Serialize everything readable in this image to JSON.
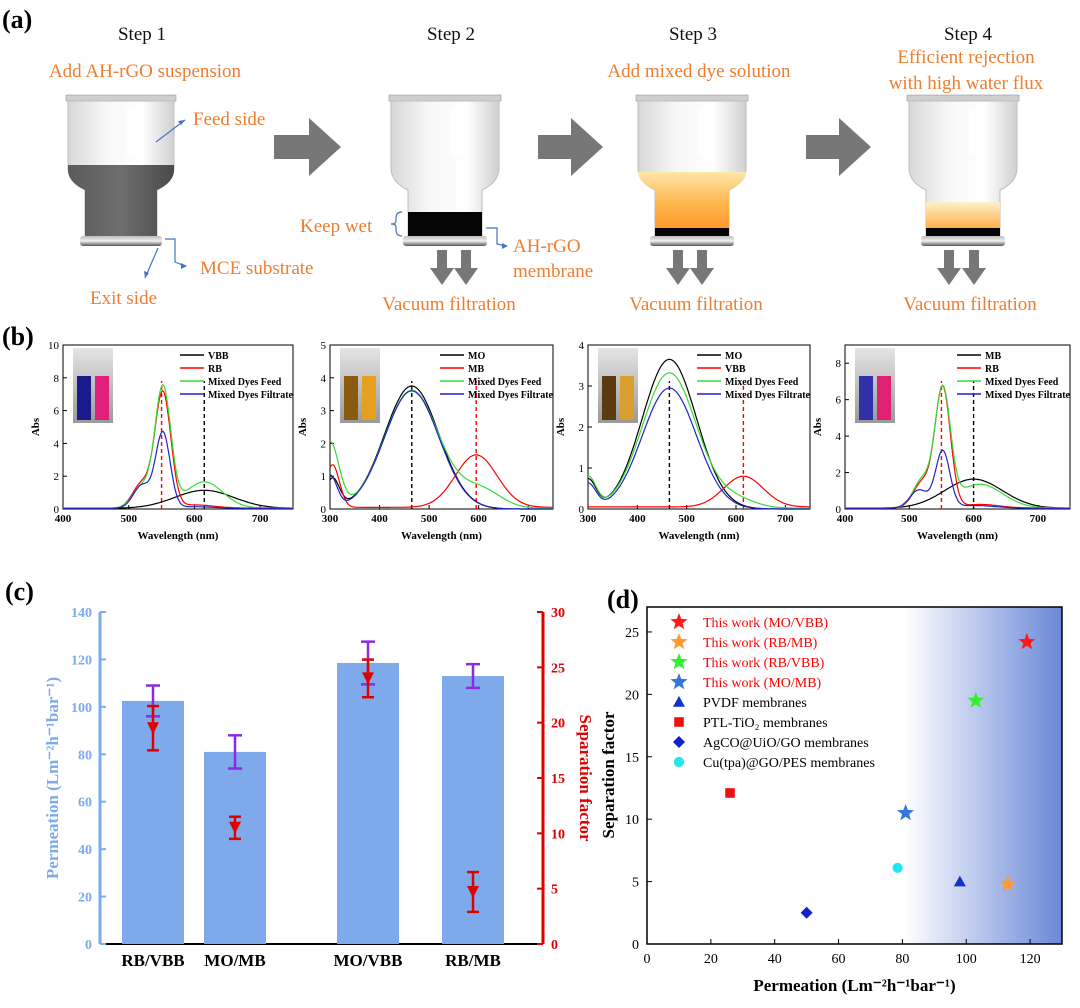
{
  "panel_labels": [
    "(a)",
    "(b)",
    "(c)",
    "(d)"
  ],
  "schematic": {
    "steps": [
      {
        "title": "Step 1",
        "caption_lines": [
          "Add AH-rGO suspension"
        ]
      },
      {
        "title": "Step 2",
        "caption_lines": []
      },
      {
        "title": "Step 3",
        "caption_lines": [
          "Add mixed dye solution"
        ]
      },
      {
        "title": "Step 4",
        "caption_lines": [
          "Efficient rejection",
          "with high water flux"
        ]
      }
    ],
    "callouts": {
      "feed_side": "Feed side",
      "exit_side": "Exit side",
      "mce_substrate": "MCE substrate",
      "keep_wet": "Keep wet",
      "membrane_line1": "AH-rGO",
      "membrane_line2": "membrane"
    },
    "vacuum_label": "Vacuum filtration"
  },
  "colors": {
    "orange": "#ED7D31",
    "bar": "#7EAAEB",
    "left_axis": "#7EAAEB",
    "right_axis": "#E00000",
    "errbar_purple": "#8A2BE2",
    "black": "#000000",
    "red": "#FF0000",
    "green": "#33DD33",
    "blue": "#2222CC"
  },
  "chart_data": [
    {
      "type": "line",
      "panel": "b1",
      "xlabel": "Wavelength (nm)",
      "ylabel": "Abs",
      "xlim": [
        400,
        750
      ],
      "ylim": [
        0,
        10
      ],
      "xticks": [
        400,
        500,
        600,
        700
      ],
      "yticks": [
        0,
        2,
        4,
        6,
        8,
        10
      ],
      "legend_position": "top-right",
      "dashed_markers": [
        {
          "x": 550,
          "color": "#FF0000"
        },
        {
          "x": 615,
          "color": "#000000"
        }
      ],
      "series": [
        {
          "name": "VBB",
          "color": "#000000",
          "peaks": [
            {
              "c": 615,
              "h": 1.1,
              "w": 45
            }
          ],
          "base": 0.04
        },
        {
          "name": "RB",
          "color": "#FF0000",
          "peaks": [
            {
              "c": 552,
              "h": 7.0,
              "w": 12
            },
            {
              "c": 520,
              "h": 1.5,
              "w": 14
            },
            {
              "c": 600,
              "h": 0.2,
              "w": 30
            }
          ],
          "base": 0.05
        },
        {
          "name": "Mixed Dyes Feed",
          "color": "#33DD33",
          "peaks": [
            {
              "c": 552,
              "h": 7.3,
              "w": 12
            },
            {
              "c": 520,
              "h": 1.3,
              "w": 14
            },
            {
              "c": 615,
              "h": 1.6,
              "w": 28
            }
          ],
          "base": 0.06
        },
        {
          "name": "Mixed Dyes Filtrate",
          "color": "#2222CC",
          "peaks": [
            {
              "c": 552,
              "h": 4.6,
              "w": 11
            },
            {
              "c": 520,
              "h": 1.4,
              "w": 13
            },
            {
              "c": 600,
              "h": 0.1,
              "w": 30
            }
          ],
          "base": 0.04
        }
      ]
    },
    {
      "type": "line",
      "panel": "b2",
      "xlabel": "Wavelength (nm)",
      "ylabel": "Abs",
      "xlim": [
        300,
        750
      ],
      "ylim": [
        0,
        5
      ],
      "xticks": [
        300,
        400,
        500,
        600,
        700
      ],
      "yticks": [
        0,
        1,
        2,
        3,
        4,
        5
      ],
      "legend_position": "top-right",
      "dashed_markers": [
        {
          "x": 465,
          "color": "#000000"
        },
        {
          "x": 595,
          "color": "#FF0000"
        }
      ],
      "series": [
        {
          "name": "MO",
          "color": "#000000",
          "peaks": [
            {
              "c": 465,
              "h": 3.75,
              "w": 55
            },
            {
              "c": 305,
              "h": 0.9,
              "w": 14
            }
          ],
          "base": 0.0
        },
        {
          "name": "MB",
          "color": "#FF0000",
          "peaks": [
            {
              "c": 595,
              "h": 1.6,
              "w": 42
            },
            {
              "c": 305,
              "h": 1.3,
              "w": 14
            }
          ],
          "base": 0.05
        },
        {
          "name": "Mixed Dyes Feed",
          "color": "#33DD33",
          "peaks": [
            {
              "c": 465,
              "h": 3.6,
              "w": 55
            },
            {
              "c": 300,
              "h": 2.0,
              "w": 18
            },
            {
              "c": 605,
              "h": 0.55,
              "w": 40
            }
          ],
          "base": 0.02
        },
        {
          "name": "Mixed Dyes Filtrate",
          "color": "#2222CC",
          "peaks": [
            {
              "c": 465,
              "h": 3.6,
              "w": 55
            },
            {
              "c": 300,
              "h": 1.0,
              "w": 14
            }
          ],
          "base": 0.0
        }
      ]
    },
    {
      "type": "line",
      "panel": "b3",
      "xlabel": "Wavelength (nm)",
      "ylabel": "Abs",
      "xlim": [
        300,
        750
      ],
      "ylim": [
        0,
        4
      ],
      "xticks": [
        300,
        400,
        500,
        600,
        700
      ],
      "yticks": [
        0,
        1,
        2,
        3,
        4
      ],
      "legend_position": "top-right",
      "dashed_markers": [
        {
          "x": 465,
          "color": "#000000"
        },
        {
          "x": 615,
          "color": "#FF0000"
        }
      ],
      "series": [
        {
          "name": "MO",
          "color": "#000000",
          "peaks": [
            {
              "c": 465,
              "h": 3.65,
              "w": 55
            },
            {
              "c": 300,
              "h": 0.7,
              "w": 16
            }
          ],
          "base": 0.0
        },
        {
          "name": "VBB",
          "color": "#FF0000",
          "peaks": [
            {
              "c": 615,
              "h": 0.75,
              "w": 40
            }
          ],
          "base": 0.05
        },
        {
          "name": "Mixed Dyes Feed",
          "color": "#33DD33",
          "peaks": [
            {
              "c": 465,
              "h": 3.3,
              "w": 55
            },
            {
              "c": 300,
              "h": 0.75,
              "w": 16
            },
            {
              "c": 600,
              "h": 0.2,
              "w": 40
            }
          ],
          "base": 0.02
        },
        {
          "name": "Mixed Dyes Filtrate",
          "color": "#2222CC",
          "peaks": [
            {
              "c": 465,
              "h": 2.95,
              "w": 55
            },
            {
              "c": 300,
              "h": 0.6,
              "w": 16
            }
          ],
          "base": 0.0
        }
      ]
    },
    {
      "type": "line",
      "panel": "b4",
      "xlabel": "Wavelength (nm)",
      "ylabel": "Abs",
      "xlim": [
        400,
        750
      ],
      "ylim": [
        0,
        9
      ],
      "xticks": [
        400,
        500,
        600,
        700
      ],
      "yticks": [
        0,
        2,
        4,
        6,
        8
      ],
      "legend_position": "top-right",
      "dashed_markers": [
        {
          "x": 550,
          "color": "#FF0000"
        },
        {
          "x": 600,
          "color": "#000000"
        }
      ],
      "series": [
        {
          "name": "MB",
          "color": "#000000",
          "peaks": [
            {
              "c": 600,
              "h": 1.6,
              "w": 45
            }
          ],
          "base": 0.04
        },
        {
          "name": "RB",
          "color": "#FF0000",
          "peaks": [
            {
              "c": 552,
              "h": 6.6,
              "w": 12
            },
            {
              "c": 520,
              "h": 1.4,
              "w": 14
            },
            {
              "c": 610,
              "h": 0.2,
              "w": 30
            }
          ],
          "base": 0.05
        },
        {
          "name": "Mixed Dyes Feed",
          "color": "#33DD33",
          "peaks": [
            {
              "c": 552,
              "h": 6.3,
              "w": 12
            },
            {
              "c": 520,
              "h": 1.5,
              "w": 14
            },
            {
              "c": 610,
              "h": 1.3,
              "w": 35
            }
          ],
          "base": 0.06
        },
        {
          "name": "Mixed Dyes Filtrate",
          "color": "#2222CC",
          "peaks": [
            {
              "c": 552,
              "h": 3.1,
              "w": 11
            },
            {
              "c": 515,
              "h": 1.0,
              "w": 14
            },
            {
              "c": 600,
              "h": 0.15,
              "w": 35
            }
          ],
          "base": 0.04
        }
      ]
    },
    {
      "type": "bar",
      "panel": "c",
      "categories": [
        "RB/VBB",
        "MO/MB",
        "MO/VBB",
        "RB/MB"
      ],
      "ylabel": "Permeation (Lm⁻²h⁻¹bar⁻¹)",
      "ylim": [
        0,
        140
      ],
      "yticks": [
        0,
        20,
        40,
        60,
        80,
        100,
        120,
        140
      ],
      "y2label": "Separation factor",
      "y2lim": [
        0,
        30
      ],
      "y2ticks": [
        0,
        5,
        10,
        15,
        20,
        25,
        30
      ],
      "series": [
        {
          "name": "Permeation",
          "axis": "left",
          "values": [
            102.5,
            81,
            118.5,
            113
          ],
          "errors": [
            6.5,
            7,
            9,
            5
          ]
        },
        {
          "name": "Separation factor",
          "axis": "right",
          "values": [
            19.5,
            10.5,
            24,
            4.7
          ],
          "errors": [
            2,
            1,
            1.7,
            1.8
          ]
        }
      ]
    },
    {
      "type": "scatter",
      "panel": "d",
      "xlabel": "Permeation (Lm⁻²h⁻¹bar⁻¹)",
      "ylabel": "Separation factor",
      "xlim": [
        0,
        130
      ],
      "ylim": [
        0,
        27
      ],
      "xticks": [
        0,
        20,
        40,
        60,
        80,
        100,
        120
      ],
      "yticks": [
        0,
        5,
        10,
        15,
        20,
        25
      ],
      "legend_position": "top-left",
      "series": [
        {
          "name": "This work (MO/VBB)",
          "marker": "star",
          "color": "#FF1A1A",
          "label_color": "#FF0000",
          "points": [
            [
              119,
              24.2
            ]
          ]
        },
        {
          "name": "This work (RB/MB)",
          "marker": "star",
          "color": "#FF9933",
          "label_color": "#FF0000",
          "points": [
            [
              113,
              4.8
            ]
          ]
        },
        {
          "name": "This work (RB/VBB)",
          "marker": "star",
          "color": "#33EE33",
          "label_color": "#FF0000",
          "points": [
            [
              103,
              19.5
            ]
          ]
        },
        {
          "name": "This work (MO/MB)",
          "marker": "star",
          "color": "#3377DD",
          "label_color": "#FF0000",
          "points": [
            [
              81,
              10.5
            ]
          ]
        },
        {
          "name": "PVDF membranes",
          "marker": "triangle",
          "color": "#1133CC",
          "label_color": "#000000",
          "points": [
            [
              98,
              5.0
            ]
          ]
        },
        {
          "name": "PTL-TiO₂ membranes",
          "marker": "square",
          "color": "#EE1111",
          "label_color": "#000000",
          "points": [
            [
              26,
              12.1
            ]
          ]
        },
        {
          "name": "AgCO@UiO/GO membranes",
          "marker": "diamond",
          "color": "#1122CC",
          "label_color": "#000000",
          "points": [
            [
              50,
              2.5
            ]
          ]
        },
        {
          "name": "Cu(tpa)@GO/PES membranes",
          "marker": "circle",
          "color": "#22E5F0",
          "label_color": "#000000",
          "points": [
            [
              78.5,
              6.1
            ]
          ]
        }
      ]
    }
  ]
}
